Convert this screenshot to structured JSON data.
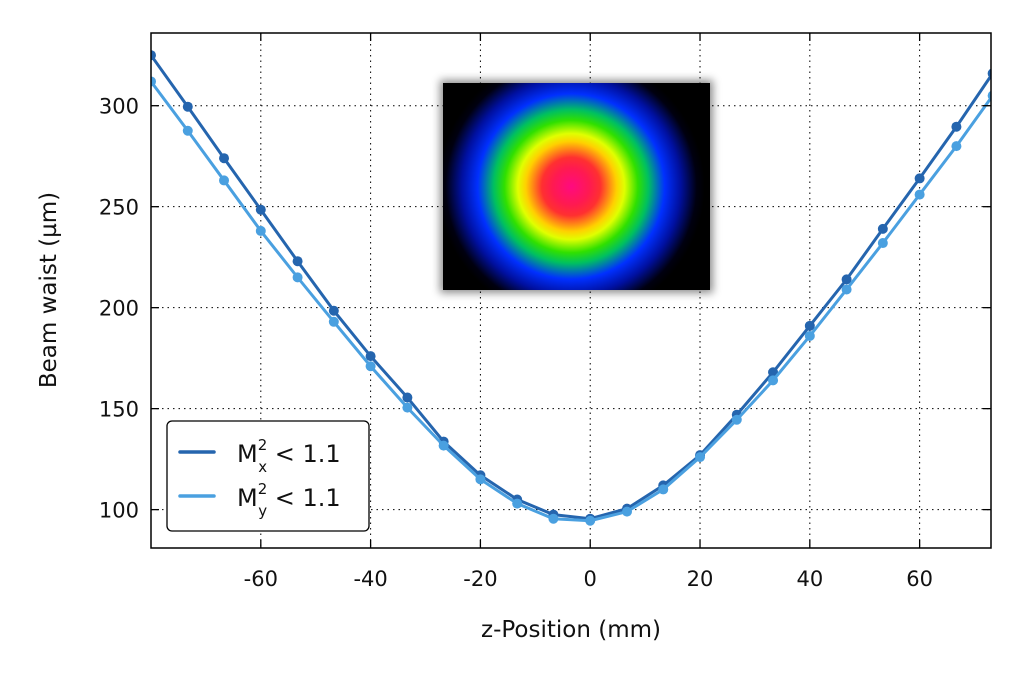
{
  "chart_data": {
    "type": "line",
    "xlabel": "z-Position (mm)",
    "ylabel": "Beam waist (µm)",
    "xlim": [
      -80,
      73
    ],
    "ylim": [
      81,
      336
    ],
    "xticks": [
      -60,
      -40,
      -20,
      0,
      20,
      40,
      60
    ],
    "yticks": [
      100,
      150,
      200,
      250,
      300
    ],
    "grid": true,
    "legend_position": "bottom-left",
    "x": [
      -80,
      -73.3,
      -66.7,
      -60,
      -53.3,
      -46.7,
      -40,
      -33.3,
      -26.7,
      -20,
      -13.3,
      -6.7,
      0,
      6.7,
      13.3,
      20,
      26.7,
      33.3,
      40,
      46.7,
      53.3,
      60,
      66.7,
      73.3
    ],
    "series": [
      {
        "name": "M_x^2 < 1.1",
        "label": {
          "base": "M",
          "sup": "2",
          "sub": "x",
          "rest": " < 1.1"
        },
        "color": "#2565ae",
        "values": [
          325,
          299.5,
          274,
          248.5,
          223,
          198.5,
          176,
          155.5,
          133.7,
          117,
          105,
          97.5,
          95.5,
          100.5,
          112,
          127,
          147,
          168,
          191,
          214,
          239,
          264,
          289.6,
          316
        ]
      },
      {
        "name": "M_y^2 < 1.1",
        "label": {
          "base": "M",
          "sup": "2",
          "sub": "y",
          "rest": " < 1.1"
        },
        "color": "#4aa0e0",
        "values": [
          312,
          287.6,
          263,
          238,
          215,
          193,
          171,
          150.5,
          131.7,
          115,
          103,
          95.5,
          94.5,
          99,
          110,
          126,
          144.5,
          164,
          186,
          209,
          232,
          256,
          280,
          305
        ]
      }
    ]
  }
}
